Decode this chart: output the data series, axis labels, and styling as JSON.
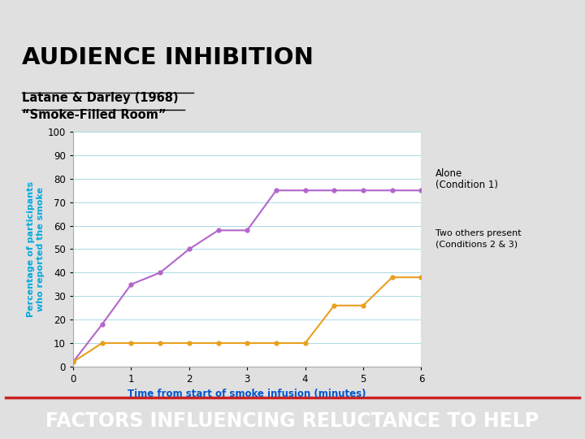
{
  "title": "AUDIENCE INHIBITION",
  "subtitle_line1": "Latane & Darley (1968)",
  "subtitle_line2": "“Smoke-Filled Room”",
  "footer": "FACTORS INFLUENCING RELUCTANCE TO HELP",
  "xlabel": "Time from start of smoke infusion (minutes)",
  "ylabel_line1": "Percentage of participants",
  "ylabel_line2": "who reported the smoke",
  "xlim": [
    0,
    6
  ],
  "ylim": [
    0,
    100
  ],
  "xticks": [
    0,
    1,
    2,
    3,
    4,
    5,
    6
  ],
  "yticks": [
    0,
    10,
    20,
    30,
    40,
    50,
    60,
    70,
    80,
    90,
    100
  ],
  "alone_x": [
    0,
    0.5,
    1.0,
    1.5,
    2.0,
    2.5,
    3.0,
    3.5,
    4.0,
    4.5,
    5.0,
    5.5,
    6.0
  ],
  "alone_y": [
    2,
    18,
    35,
    40,
    50,
    58,
    58,
    75,
    75,
    75,
    75,
    75,
    75
  ],
  "two_others_x": [
    0,
    0.5,
    1.0,
    1.5,
    2.0,
    2.5,
    3.0,
    3.5,
    4.0,
    4.5,
    5.0,
    5.5,
    6.0
  ],
  "two_others_y": [
    2,
    10,
    10,
    10,
    10,
    10,
    10,
    10,
    10,
    26,
    26,
    38,
    38
  ],
  "alone_color": "#b366cc",
  "two_others_color": "#e8a020",
  "alone_label_line1": "Alone",
  "alone_label_line2": "(Condition 1)",
  "two_others_label_line1": "Two others present",
  "two_others_label_line2": "(Conditions 2 & 3)",
  "ylabel_color": "#00aadd",
  "xlabel_color": "#0055cc",
  "bg_slide": "#e0e0e0",
  "bg_chart": "#ffffff",
  "header_red": "#8b0000",
  "grid_color": "#add8e6",
  "footer_bg": "#1a1a1a",
  "footer_color": "#ffffff",
  "footer_red_line": "#cc2222"
}
